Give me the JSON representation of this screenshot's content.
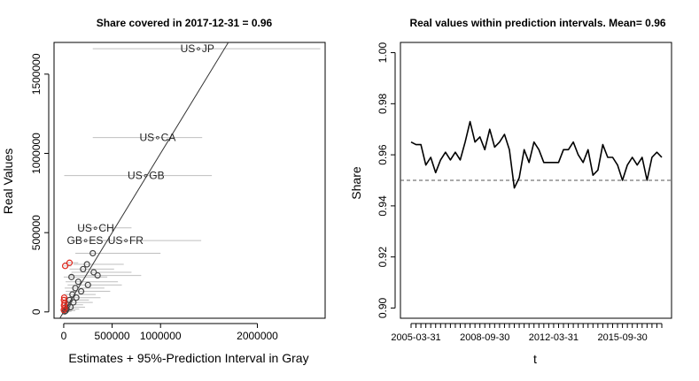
{
  "chart_data": [
    {
      "type": "scatter",
      "title": "Share covered in 2017-12-31 = 0.96",
      "xlabel": "Estimates + 95%-Prediction Interval in Gray",
      "ylabel": "Real Values",
      "xlim": [
        -100000,
        2700000
      ],
      "ylim": [
        -40000,
        1700000
      ],
      "x_ticks": [
        0,
        500000,
        1000000,
        2000000
      ],
      "x_tick_labels": [
        "0",
        "500000",
        "1000000",
        "2000000"
      ],
      "y_ticks": [
        0,
        500000,
        1000000,
        1500000
      ],
      "y_tick_labels": [
        "0",
        "500000",
        "1000000",
        "1500000"
      ],
      "diagonal_line": {
        "from": [
          -100000,
          -100000
        ],
        "to": [
          2700000,
          2700000
        ],
        "color": "#333333"
      },
      "interval_color": "#bfbfbf",
      "covered_color": "#444444",
      "uncovered_color": "#e0261b",
      "labeled_points": [
        {
          "label": "US∘JP",
          "x": 1380000,
          "y": 1660000,
          "lo": 300000,
          "hi": 2650000
        },
        {
          "label": "US∘CA",
          "x": 970000,
          "y": 1100000,
          "lo": 300000,
          "hi": 1430000
        },
        {
          "label": "US∘GB",
          "x": 850000,
          "y": 860000,
          "lo": 5000,
          "hi": 1530000
        },
        {
          "label": "US∘CH",
          "x": 330000,
          "y": 530000,
          "lo": 150000,
          "hi": 700000
        },
        {
          "label": "GB∘ES",
          "x": 220000,
          "y": 450000,
          "lo": 100000,
          "hi": 500000
        },
        {
          "label": "US∘FR",
          "x": 640000,
          "y": 450000,
          "lo": 260000,
          "hi": 1420000
        }
      ],
      "points": [
        {
          "x": 300000,
          "y": 370000,
          "lo": 120000,
          "hi": 1000000,
          "covered": true
        },
        {
          "x": 240000,
          "y": 300000,
          "lo": 100000,
          "hi": 620000,
          "covered": true
        },
        {
          "x": 200000,
          "y": 270000,
          "lo": 60000,
          "hi": 520000,
          "covered": true
        },
        {
          "x": 310000,
          "y": 250000,
          "lo": 80000,
          "hi": 700000,
          "covered": true
        },
        {
          "x": 350000,
          "y": 230000,
          "lo": 50000,
          "hi": 800000,
          "covered": true
        },
        {
          "x": 80000,
          "y": 220000,
          "lo": 0,
          "hi": 450000,
          "covered": true
        },
        {
          "x": 150000,
          "y": 190000,
          "lo": 20000,
          "hi": 560000,
          "covered": true
        },
        {
          "x": 250000,
          "y": 170000,
          "lo": 40000,
          "hi": 600000,
          "covered": true
        },
        {
          "x": 120000,
          "y": 150000,
          "lo": 10000,
          "hi": 420000,
          "covered": true
        },
        {
          "x": 180000,
          "y": 130000,
          "lo": 20000,
          "hi": 480000,
          "covered": true
        },
        {
          "x": 90000,
          "y": 110000,
          "lo": 0,
          "hi": 330000,
          "covered": true
        },
        {
          "x": 130000,
          "y": 90000,
          "lo": 0,
          "hi": 380000,
          "covered": true
        },
        {
          "x": 60000,
          "y": 75000,
          "lo": 0,
          "hi": 260000,
          "covered": true
        },
        {
          "x": 100000,
          "y": 60000,
          "lo": 0,
          "hi": 300000,
          "covered": true
        },
        {
          "x": 40000,
          "y": 45000,
          "lo": 0,
          "hi": 200000,
          "covered": true
        },
        {
          "x": 70000,
          "y": 30000,
          "lo": 0,
          "hi": 220000,
          "covered": true
        },
        {
          "x": 30000,
          "y": 18000,
          "lo": 0,
          "hi": 160000,
          "covered": true
        },
        {
          "x": 20000,
          "y": 8000,
          "lo": 0,
          "hi": 120000,
          "covered": true
        },
        {
          "x": 10000,
          "y": 3000,
          "lo": 0,
          "hi": 80000,
          "covered": true
        },
        {
          "x": 15000,
          "y": 290000,
          "lo": 0,
          "hi": 80000,
          "covered": false
        },
        {
          "x": 60000,
          "y": 310000,
          "lo": 0,
          "hi": 150000,
          "covered": false
        },
        {
          "x": 5000,
          "y": 90000,
          "lo": 0,
          "hi": 40000,
          "covered": false
        },
        {
          "x": 2000,
          "y": 75000,
          "lo": 0,
          "hi": 30000,
          "covered": false
        },
        {
          "x": 8000,
          "y": 55000,
          "lo": 0,
          "hi": 30000,
          "covered": false
        },
        {
          "x": 3000,
          "y": 40000,
          "lo": 0,
          "hi": 20000,
          "covered": false
        },
        {
          "x": 10000,
          "y": 25000,
          "lo": 0,
          "hi": 15000,
          "covered": false
        },
        {
          "x": 1000,
          "y": 12000,
          "lo": 0,
          "hi": 8000,
          "covered": false
        }
      ]
    },
    {
      "type": "line",
      "title": "Real values within prediction intervals. Mean= 0.96",
      "xlabel": "t",
      "ylabel": "Share",
      "ylim": [
        0.9,
        1.0
      ],
      "y_ticks": [
        0.9,
        0.92,
        0.94,
        0.96,
        0.98,
        1.0
      ],
      "y_tick_labels": [
        "0.90",
        "0.92",
        "0.94",
        "0.96",
        "0.98",
        "1.00"
      ],
      "x_tick_labels": [
        "2005-03-31",
        "2008-09-30",
        "2012-03-31",
        "2015-09-30"
      ],
      "x_tick_label_positions": [
        1,
        15,
        29,
        43
      ],
      "x": [
        "2005-03-31",
        "2005-06-30",
        "2005-09-30",
        "2005-12-31",
        "2006-03-31",
        "2006-06-30",
        "2006-09-30",
        "2006-12-31",
        "2007-03-31",
        "2007-06-30",
        "2007-09-30",
        "2007-12-31",
        "2008-03-31",
        "2008-06-30",
        "2008-09-30",
        "2008-12-31",
        "2009-03-31",
        "2009-06-30",
        "2009-09-30",
        "2009-12-31",
        "2010-03-31",
        "2010-06-30",
        "2010-09-30",
        "2010-12-31",
        "2011-03-31",
        "2011-06-30",
        "2011-09-30",
        "2011-12-31",
        "2012-03-31",
        "2012-06-30",
        "2012-09-30",
        "2012-12-31",
        "2013-03-31",
        "2013-06-30",
        "2013-09-30",
        "2013-12-31",
        "2014-03-31",
        "2014-06-30",
        "2014-09-30",
        "2014-12-31",
        "2015-03-31",
        "2015-06-30",
        "2015-09-30",
        "2015-12-31",
        "2016-03-31",
        "2016-06-30",
        "2016-09-30",
        "2016-12-31",
        "2017-03-31",
        "2017-06-30",
        "2017-09-30",
        "2017-12-31"
      ],
      "series": [
        {
          "values": [
            0.965,
            0.964,
            0.964,
            0.956,
            0.959,
            0.953,
            0.958,
            0.961,
            0.958,
            0.961,
            0.958,
            0.965,
            0.973,
            0.965,
            0.967,
            0.962,
            0.97,
            0.963,
            0.965,
            0.968,
            0.962,
            0.947,
            0.951,
            0.962,
            0.957,
            0.965,
            0.962,
            0.957,
            0.957,
            0.957,
            0.957,
            0.962,
            0.962,
            0.965,
            0.96,
            0.957,
            0.962,
            0.952,
            0.954,
            0.964,
            0.959,
            0.959,
            0.956,
            0.95,
            0.956,
            0.959,
            0.956,
            0.959,
            0.95,
            0.959,
            0.961,
            0.959
          ]
        }
      ],
      "reference_line": {
        "y": 0.95,
        "style": "dashed",
        "color": "#555555"
      },
      "line_color": "#000000"
    }
  ]
}
